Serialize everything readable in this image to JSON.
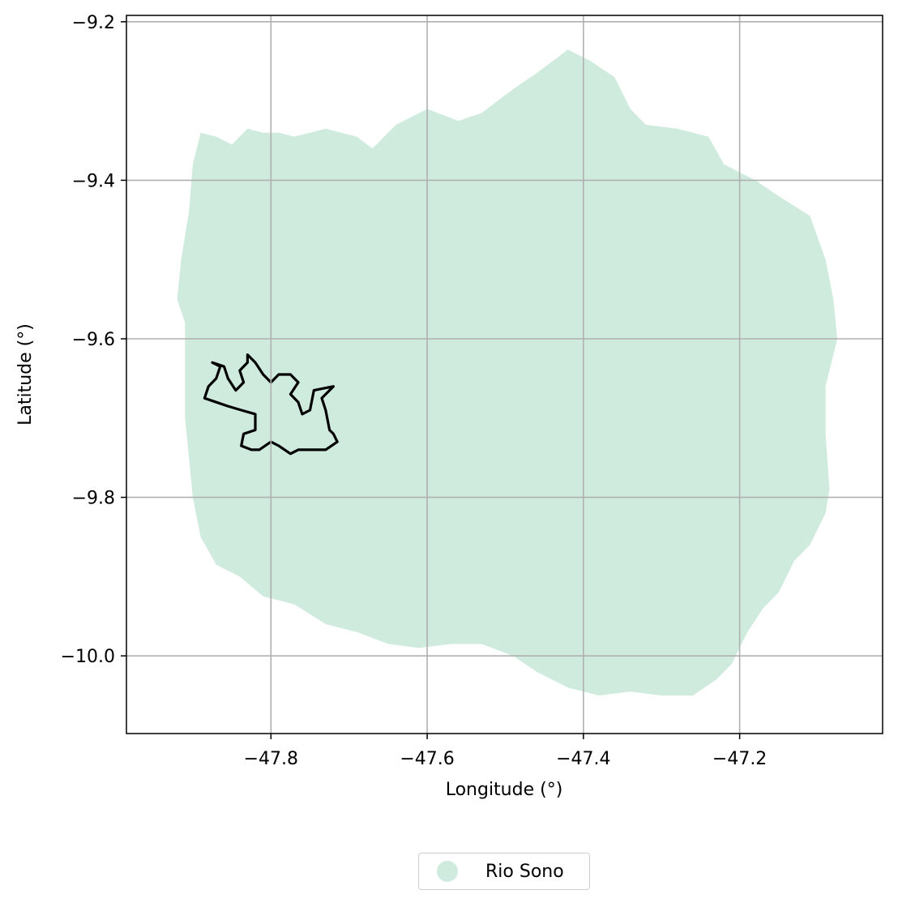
{
  "chart_data": {
    "type": "map",
    "xlabel": "Longitude (°)",
    "ylabel": "Latitude (°)",
    "xlim": [
      -47.985,
      -47.017
    ],
    "ylim": [
      -10.098,
      -9.192
    ],
    "x_ticks": [
      -47.8,
      -47.6,
      -47.4,
      -47.2
    ],
    "x_tick_labels": [
      "−47.8",
      "−47.6",
      "−47.4",
      "−47.2"
    ],
    "y_ticks": [
      -9.2,
      -9.4,
      -9.6,
      -9.8,
      -10.0
    ],
    "y_tick_labels": [
      "−9.2",
      "−9.4",
      "−9.6",
      "−9.8",
      "−10.0"
    ],
    "grid": true,
    "legend_placement": "bottom-center",
    "layers": [
      {
        "name": "Rio Sono",
        "kind": "filled-polygon",
        "color": "#cfebde",
        "coords": [
          [
            -47.89,
            -9.34
          ],
          [
            -47.87,
            -9.345
          ],
          [
            -47.85,
            -9.355
          ],
          [
            -47.83,
            -9.335
          ],
          [
            -47.81,
            -9.34
          ],
          [
            -47.79,
            -9.34
          ],
          [
            -47.77,
            -9.345
          ],
          [
            -47.73,
            -9.335
          ],
          [
            -47.69,
            -9.345
          ],
          [
            -47.67,
            -9.36
          ],
          [
            -47.64,
            -9.33
          ],
          [
            -47.6,
            -9.31
          ],
          [
            -47.56,
            -9.325
          ],
          [
            -47.53,
            -9.315
          ],
          [
            -47.49,
            -9.285
          ],
          [
            -47.46,
            -9.265
          ],
          [
            -47.42,
            -9.235
          ],
          [
            -47.39,
            -9.25
          ],
          [
            -47.36,
            -9.27
          ],
          [
            -47.34,
            -9.31
          ],
          [
            -47.32,
            -9.33
          ],
          [
            -47.28,
            -9.335
          ],
          [
            -47.24,
            -9.345
          ],
          [
            -47.22,
            -9.38
          ],
          [
            -47.18,
            -9.4
          ],
          [
            -47.15,
            -9.42
          ],
          [
            -47.11,
            -9.445
          ],
          [
            -47.09,
            -9.5
          ],
          [
            -47.08,
            -9.55
          ],
          [
            -47.075,
            -9.6
          ],
          [
            -47.09,
            -9.66
          ],
          [
            -47.09,
            -9.72
          ],
          [
            -47.085,
            -9.79
          ],
          [
            -47.09,
            -9.82
          ],
          [
            -47.11,
            -9.86
          ],
          [
            -47.13,
            -9.88
          ],
          [
            -47.15,
            -9.92
          ],
          [
            -47.17,
            -9.94
          ],
          [
            -47.19,
            -9.97
          ],
          [
            -47.21,
            -10.01
          ],
          [
            -47.23,
            -10.03
          ],
          [
            -47.26,
            -10.05
          ],
          [
            -47.3,
            -10.05
          ],
          [
            -47.34,
            -10.045
          ],
          [
            -47.38,
            -10.05
          ],
          [
            -47.42,
            -10.04
          ],
          [
            -47.46,
            -10.02
          ],
          [
            -47.49,
            -10.0
          ],
          [
            -47.53,
            -9.985
          ],
          [
            -47.57,
            -9.985
          ],
          [
            -47.61,
            -9.99
          ],
          [
            -47.65,
            -9.985
          ],
          [
            -47.69,
            -9.97
          ],
          [
            -47.73,
            -9.96
          ],
          [
            -47.77,
            -9.935
          ],
          [
            -47.81,
            -9.925
          ],
          [
            -47.84,
            -9.9
          ],
          [
            -47.87,
            -9.885
          ],
          [
            -47.89,
            -9.85
          ],
          [
            -47.9,
            -9.8
          ],
          [
            -47.905,
            -9.75
          ],
          [
            -47.91,
            -9.7
          ],
          [
            -47.91,
            -9.64
          ],
          [
            -47.91,
            -9.58
          ],
          [
            -47.92,
            -9.55
          ],
          [
            -47.915,
            -9.5
          ],
          [
            -47.905,
            -9.44
          ],
          [
            -47.9,
            -9.38
          ]
        ]
      },
      {
        "name": "",
        "kind": "outline-polygon",
        "color": "#000000",
        "coords": [
          [
            -47.83,
            -9.62
          ],
          [
            -47.82,
            -9.63
          ],
          [
            -47.81,
            -9.645
          ],
          [
            -47.8,
            -9.655
          ],
          [
            -47.79,
            -9.645
          ],
          [
            -47.775,
            -9.645
          ],
          [
            -47.765,
            -9.655
          ],
          [
            -47.775,
            -9.67
          ],
          [
            -47.765,
            -9.68
          ],
          [
            -47.76,
            -9.695
          ],
          [
            -47.75,
            -9.69
          ],
          [
            -47.745,
            -9.665
          ],
          [
            -47.72,
            -9.66
          ],
          [
            -47.735,
            -9.675
          ],
          [
            -47.73,
            -9.69
          ],
          [
            -47.725,
            -9.715
          ],
          [
            -47.72,
            -9.72
          ],
          [
            -47.715,
            -9.73
          ],
          [
            -47.73,
            -9.74
          ],
          [
            -47.765,
            -9.74
          ],
          [
            -47.775,
            -9.745
          ],
          [
            -47.79,
            -9.735
          ],
          [
            -47.8,
            -9.73
          ],
          [
            -47.815,
            -9.74
          ],
          [
            -47.825,
            -9.74
          ],
          [
            -47.838,
            -9.735
          ],
          [
            -47.835,
            -9.72
          ],
          [
            -47.82,
            -9.715
          ],
          [
            -47.82,
            -9.695
          ],
          [
            -47.838,
            -9.69
          ],
          [
            -47.855,
            -9.685
          ],
          [
            -47.87,
            -9.68
          ],
          [
            -47.885,
            -9.675
          ],
          [
            -47.88,
            -9.66
          ],
          [
            -47.87,
            -9.65
          ],
          [
            -47.865,
            -9.635
          ],
          [
            -47.875,
            -9.63
          ],
          [
            -47.86,
            -9.635
          ],
          [
            -47.855,
            -9.65
          ],
          [
            -47.845,
            -9.665
          ],
          [
            -47.835,
            -9.655
          ],
          [
            -47.84,
            -9.64
          ],
          [
            -47.83,
            -9.63
          ]
        ]
      }
    ]
  },
  "legend": {
    "label": "Rio Sono",
    "color": "#cfebde"
  }
}
